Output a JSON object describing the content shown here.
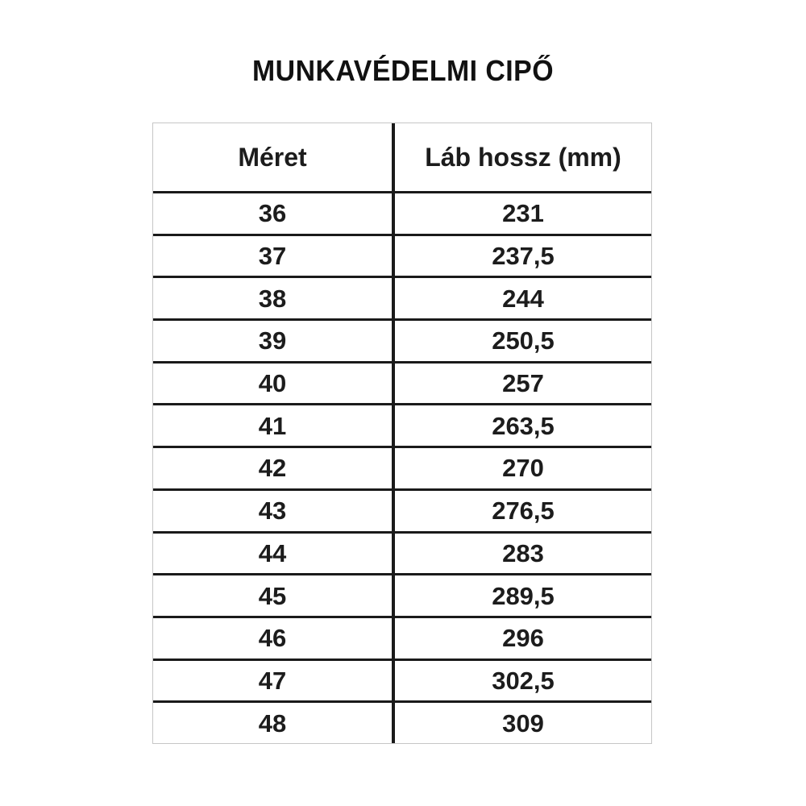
{
  "title": "MUNKAVÉDELMI CIPŐ",
  "table": {
    "columns": [
      "Méret",
      "Láb hossz (mm)"
    ],
    "rows": [
      [
        "36",
        "231"
      ],
      [
        "37",
        "237,5"
      ],
      [
        "38",
        "244"
      ],
      [
        "39",
        "250,5"
      ],
      [
        "40",
        "257"
      ],
      [
        "41",
        "263,5"
      ],
      [
        "42",
        "270"
      ],
      [
        "43",
        "276,5"
      ],
      [
        "44",
        "283"
      ],
      [
        "45",
        "289,5"
      ],
      [
        "46",
        "296"
      ],
      [
        "47",
        "302,5"
      ],
      [
        "48",
        "309"
      ]
    ]
  },
  "chart_data": {
    "type": "table",
    "title": "MUNKAVÉDELMI CIPŐ",
    "columns": [
      "Méret",
      "Láb hossz (mm)"
    ],
    "rows": [
      [
        36,
        231
      ],
      [
        37,
        237.5
      ],
      [
        38,
        244
      ],
      [
        39,
        250.5
      ],
      [
        40,
        257
      ],
      [
        41,
        263.5
      ],
      [
        42,
        270
      ],
      [
        43,
        276.5
      ],
      [
        44,
        283
      ],
      [
        45,
        289.5
      ],
      [
        46,
        296
      ],
      [
        47,
        302.5
      ],
      [
        48,
        309
      ]
    ]
  },
  "colors": {
    "background": "#ffffff",
    "text": "#1c1c1c",
    "grid_heavy": "#1a1a1a",
    "grid_light": "#c6c6c6"
  }
}
